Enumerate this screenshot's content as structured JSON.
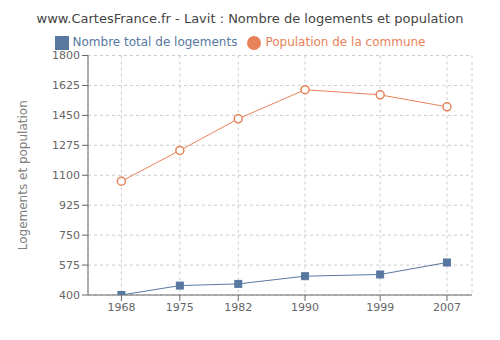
{
  "chart_data": {
    "type": "line",
    "title": "www.CartesFrance.fr - Lavit : Nombre de logements et population",
    "ylabel": "Logements et population",
    "x": [
      1968,
      1975,
      1982,
      1990,
      1999,
      2007
    ],
    "series": [
      {
        "name": "Nombre total de logements",
        "color": "#5878a0",
        "marker": "square",
        "values": [
          400,
          455,
          465,
          510,
          520,
          590
        ]
      },
      {
        "name": "Population de la commune",
        "color": "#e8825a",
        "marker": "circle",
        "values": [
          1065,
          1245,
          1430,
          1600,
          1570,
          1500
        ]
      }
    ],
    "xlim": [
      1964,
      2010
    ],
    "xticks": [
      1968,
      1975,
      1982,
      1990,
      1999,
      2007
    ],
    "ylim": [
      400,
      1800
    ],
    "yticks": [
      400,
      575,
      750,
      925,
      1100,
      1275,
      1450,
      1625,
      1800
    ],
    "grid": true,
    "legend": "top"
  }
}
